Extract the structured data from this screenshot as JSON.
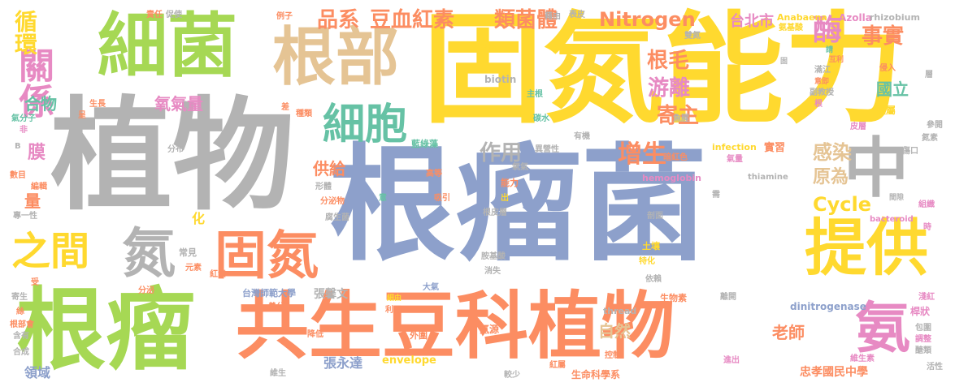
{
  "words": {
    "w001": "根瘤菌",
    "w002": "植物",
    "w003": "固氮能力",
    "w004": "細菌",
    "w005": "根瘤",
    "w006": "共生豆科植物",
    "w007": "根部",
    "w008": "固氮",
    "w009": "提供",
    "w010": "細胞",
    "w011": "中",
    "w012": "氨",
    "w013": "氮",
    "w014": "之間",
    "w015": "關係",
    "w016": "循環",
    "w017": "品系",
    "w018": "豆血紅素",
    "w019": "類菌體",
    "w020": "Nitrogen",
    "w021": "台北市",
    "w022": "酶",
    "w023": "事實",
    "w024": "根毛",
    "w025": "游離",
    "w026": "寄主",
    "w027": "增生",
    "w028": "作用",
    "w029": "感染",
    "w030": "原為",
    "w031": "Cycle",
    "w032": "供給",
    "w033": "膜",
    "w034": "氧氣量",
    "w035": "合物",
    "w036": "國立",
    "w037": "量",
    "w038": "老師",
    "w039": "自然",
    "w040": "忠孝國民中學",
    "w041": "生命科學系",
    "w042": "張永達",
    "w043": "領域",
    "w044": "張馨文",
    "w045": "台灣師範大學",
    "w046": "化",
    "w047": "Anabaena",
    "w048": "Azolla",
    "w049": "rhizobium",
    "w050": "氨基酸",
    "w051": "雙氮",
    "w052": "互利",
    "w053": "滿江",
    "w054": "意即",
    "w055": "副教授",
    "w056": "根",
    "w057": "藻屬",
    "w058": "皮層",
    "w059": "參閱",
    "w060": "氮素",
    "w061": "傷口",
    "w062": "間隙",
    "w063": "組織",
    "w064": "bacteroid",
    "w065": "時",
    "w066": "淺紅",
    "w067": "桿狀",
    "w068": "包圍",
    "w069": "調整",
    "w070": "醣類",
    "w071": "維生素",
    "w072": "活性",
    "w073": "進出",
    "w074": "離開",
    "w075": "dinitrogenase",
    "w076": "thiamine",
    "w077": "hemoglobin",
    "w078": "infection",
    "w079": "biotin",
    "w080": "thread",
    "w081": "envelope",
    "w082": "實習",
    "w083": "氣量",
    "w084": "暗紅色",
    "w085": "魚腥",
    "w086": "有機",
    "w087": "碳水",
    "w088": "主根",
    "w089": "藍綠",
    "w090": "藍綠藻",
    "w091": "異營性",
    "w092": "氧氣",
    "w093": "高等",
    "w094": "能力",
    "w095": "吸引",
    "w096": "出",
    "w097": "意",
    "w098": "根皮層",
    "w099": "腐生菌",
    "w100": "分泌物",
    "w101": "形體",
    "w102": "常見",
    "w103": "元素",
    "w104": "分泌",
    "w105": "紅素",
    "w106": "寄生",
    "w107": "根部會",
    "w108": "含有",
    "w109": "合成",
    "w110": "維生",
    "w111": "降低",
    "w112": "外圍",
    "w113": "氮源",
    "w114": "較少",
    "w115": "紅屬",
    "w116": "控制",
    "w117": "生物素",
    "w118": "依賴",
    "w119": "特化",
    "w120": "土壤",
    "w121": "剖面",
    "w122": "需",
    "w123": "胺基酸",
    "w124": "消失",
    "w125": "大氣",
    "w126": "利用",
    "w127": "細由",
    "w128": "養分",
    "w129": "氣分子",
    "w130": "非",
    "w131": "B",
    "w132": "數目",
    "w133": "編輯",
    "w134": "專一性",
    "w135": "受",
    "w136": "絲",
    "w137": "分布",
    "w138": "生長",
    "w139": "呈",
    "w140": "差",
    "w141": "種類",
    "w142": "例子",
    "w143": "責任",
    "w144": "促使",
    "w145": "藉由",
    "w146": "表皮",
    "w147": "請",
    "w148": "侵入",
    "w149": "層",
    "w150": "固"
  }
}
